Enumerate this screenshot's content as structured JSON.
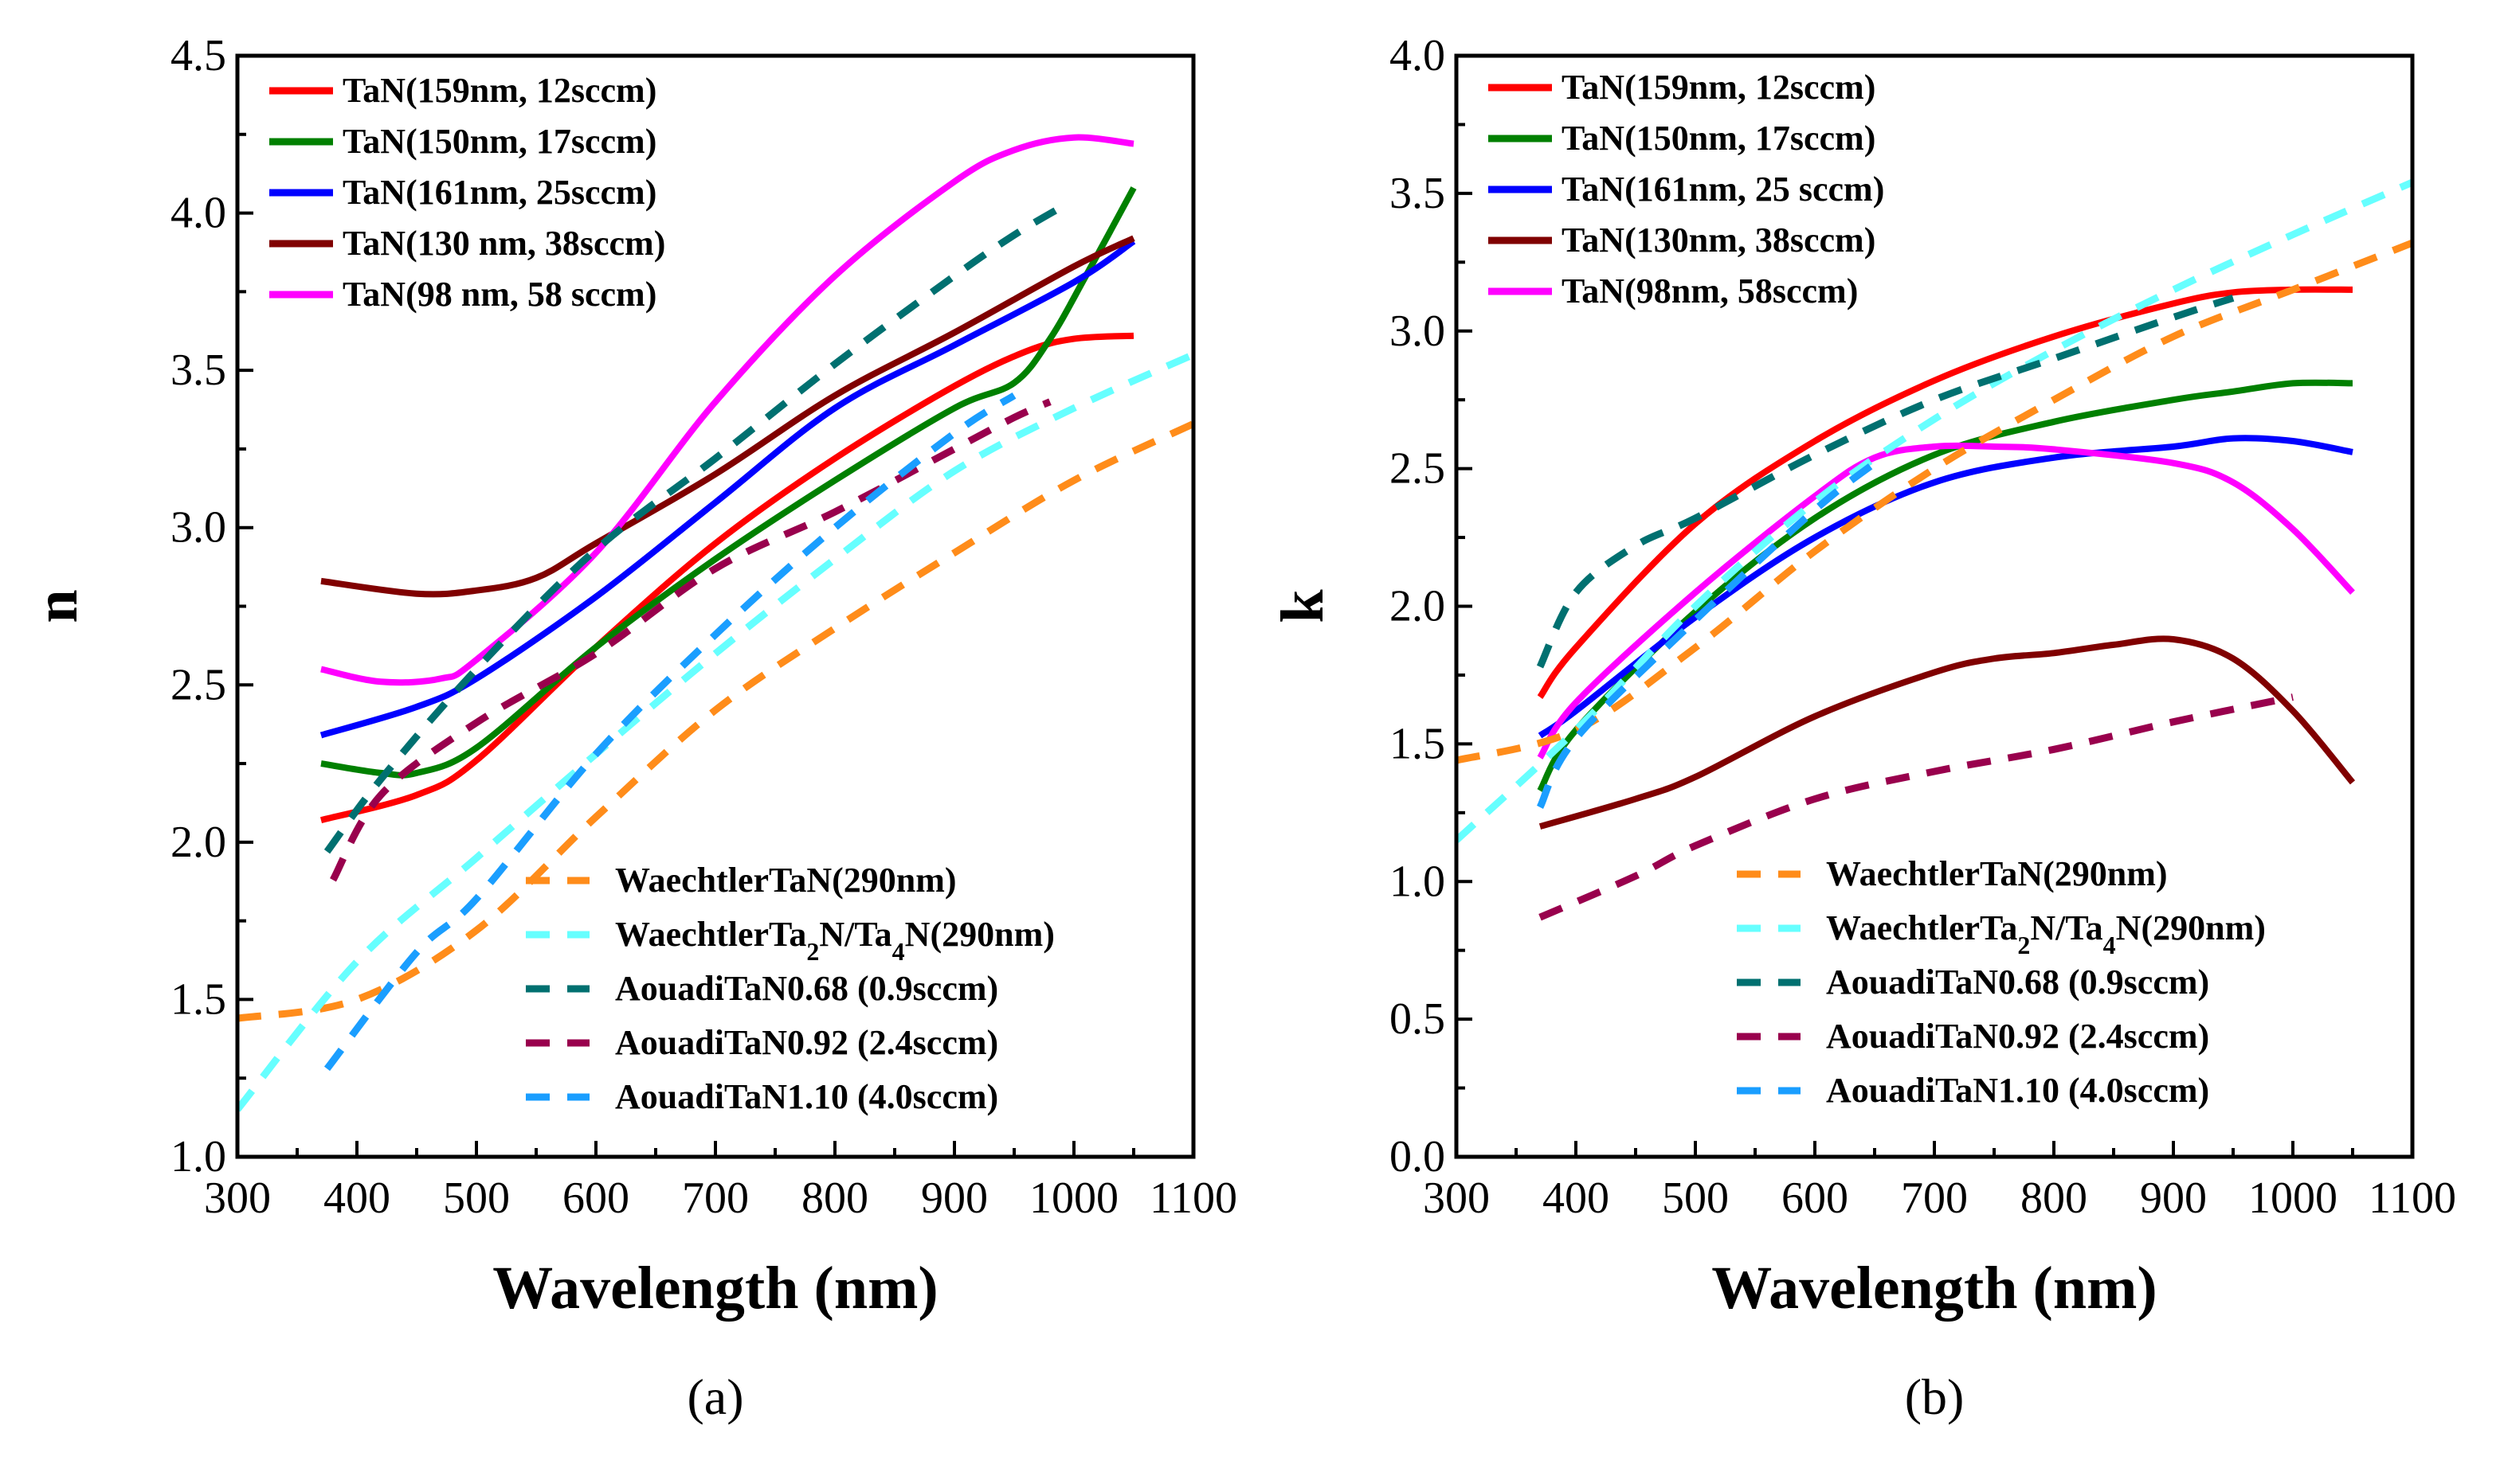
{
  "chart_data": [
    {
      "type": "line",
      "panel": "a",
      "caption": "(a)",
      "xlabel": "Wavelength (nm)",
      "ylabel": "n",
      "xlim": [
        300,
        1100
      ],
      "ylim": [
        1.0,
        4.5
      ],
      "xticks": [
        300,
        400,
        500,
        600,
        700,
        800,
        900,
        1000,
        1100
      ],
      "yticks": [
        1.0,
        1.5,
        2.0,
        2.5,
        3.0,
        3.5,
        4.0,
        4.5
      ],
      "xtick_labels": [
        "300",
        "400",
        "500",
        "600",
        "700",
        "800",
        "900",
        "1000",
        "1100"
      ],
      "ytick_labels": [
        "1.0",
        "1.5",
        "2.0",
        "2.5",
        "3.0",
        "3.5",
        "4.0",
        "4.5"
      ],
      "legend_solid_position": "top-left",
      "legend_dashed_position": "bottom-right",
      "series": [
        {
          "name": "TaN(159nm, 12sccm)",
          "color": "#ff0000",
          "dashed": false,
          "x": [
            370,
            450,
            500,
            600,
            700,
            800,
            900,
            960,
            1000,
            1050
          ],
          "y": [
            2.07,
            2.15,
            2.26,
            2.62,
            2.95,
            3.22,
            3.45,
            3.56,
            3.6,
            3.61
          ]
        },
        {
          "name": "TaN(150nm, 17sccm)",
          "color": "#008000",
          "dashed": false,
          "x": [
            370,
            420,
            450,
            500,
            600,
            700,
            800,
            900,
            950,
            980,
            1010,
            1050
          ],
          "y": [
            2.25,
            2.22,
            2.22,
            2.3,
            2.62,
            2.9,
            3.15,
            3.38,
            3.46,
            3.6,
            3.8,
            4.08
          ]
        },
        {
          "name": "TaN(161nm, 25sccm)",
          "color": "#0000ff",
          "dashed": false,
          "x": [
            370,
            450,
            500,
            600,
            700,
            800,
            900,
            1000,
            1050
          ],
          "y": [
            2.34,
            2.43,
            2.52,
            2.78,
            3.08,
            3.38,
            3.58,
            3.78,
            3.91
          ]
        },
        {
          "name": "TaN(130 nm, 38sccm)",
          "color": "#800000",
          "dashed": false,
          "x": [
            370,
            450,
            500,
            550,
            600,
            700,
            800,
            900,
            1000,
            1050
          ],
          "y": [
            2.83,
            2.79,
            2.8,
            2.84,
            2.95,
            3.17,
            3.42,
            3.62,
            3.83,
            3.92
          ]
        },
        {
          "name": "TaN(98 nm, 58 sccm)",
          "color": "#ff00ff",
          "dashed": false,
          "x": [
            370,
            420,
            470,
            500,
            600,
            700,
            800,
            900,
            950,
            1000,
            1050
          ],
          "y": [
            2.55,
            2.51,
            2.52,
            2.58,
            2.92,
            3.4,
            3.8,
            4.1,
            4.2,
            4.24,
            4.22
          ]
        },
        {
          "name": "WaechtlerTaN(290nm)",
          "color": "#ff8c1a",
          "dashed": true,
          "x": [
            300,
            400,
            500,
            600,
            700,
            800,
            900,
            1000,
            1100
          ],
          "y": [
            1.44,
            1.5,
            1.72,
            2.08,
            2.42,
            2.68,
            2.92,
            3.15,
            3.33
          ]
        },
        {
          "name": "WaechtlerTa2N/Ta4N(290nm)",
          "color": "#66ffff",
          "dashed": true,
          "x": [
            300,
            400,
            500,
            600,
            700,
            800,
            900,
            1000,
            1100
          ],
          "y": [
            1.15,
            1.62,
            1.95,
            2.28,
            2.6,
            2.9,
            3.18,
            3.38,
            3.55
          ]
        },
        {
          "name": "AouadiTaN0.68 (0.9sccm)",
          "color": "#007070",
          "dashed": true,
          "x": [
            375,
            420,
            500,
            600,
            700,
            800,
            900,
            950,
            990
          ],
          "y": [
            1.97,
            2.2,
            2.55,
            2.93,
            3.22,
            3.52,
            3.8,
            3.93,
            4.02
          ]
        },
        {
          "name": "AouadiTaN0.92 (2.4sccm)",
          "color": "#99004d",
          "dashed": true,
          "x": [
            380,
            420,
            500,
            600,
            700,
            800,
            900,
            950,
            980
          ],
          "y": [
            1.88,
            2.15,
            2.38,
            2.6,
            2.87,
            3.05,
            3.25,
            3.35,
            3.4
          ]
        },
        {
          "name": "AouadiTaN1.10 (4.0sccm)",
          "color": "#1a9eff",
          "dashed": true,
          "x": [
            375,
            450,
            500,
            600,
            700,
            800,
            900,
            950
          ],
          "y": [
            1.28,
            1.65,
            1.82,
            2.28,
            2.66,
            3.0,
            3.3,
            3.42
          ]
        }
      ],
      "legend_solid": [
        {
          "label": "TaN(159nm, 12sccm)"
        },
        {
          "label": "TaN(150nm, 17sccm)"
        },
        {
          "label": "TaN(161nm, 25sccm)"
        },
        {
          "label": "TaN(130 nm, 38sccm)"
        },
        {
          "label": "TaN(98 nm, 58 sccm)"
        }
      ],
      "legend_dashed": [
        {
          "label": "WaechtlerTaN(290nm)"
        },
        {
          "label_pre": "WaechtlerTa",
          "sub1": "2",
          "label_mid": "N/Ta",
          "sub2": "4",
          "label_post": "N(290nm)"
        },
        {
          "label": "AouadiTaN0.68 (0.9sccm)"
        },
        {
          "label": "AouadiTaN0.92 (2.4sccm)"
        },
        {
          "label": "AouadiTaN1.10 (4.0sccm)"
        }
      ]
    },
    {
      "type": "line",
      "panel": "b",
      "caption": "(b)",
      "xlabel": "Wavelength (nm)",
      "ylabel": "k",
      "xlim": [
        300,
        1100
      ],
      "ylim": [
        0.0,
        4.0
      ],
      "xticks": [
        300,
        400,
        500,
        600,
        700,
        800,
        900,
        1000,
        1100
      ],
      "yticks": [
        0.0,
        0.5,
        1.0,
        1.5,
        2.0,
        2.5,
        3.0,
        3.5,
        4.0
      ],
      "xtick_labels": [
        "300",
        "400",
        "500",
        "600",
        "700",
        "800",
        "900",
        "1000",
        "1100"
      ],
      "ytick_labels": [
        "0.0",
        "0.5",
        "1.0",
        "1.5",
        "2.0",
        "2.5",
        "3.0",
        "3.5",
        "4.0"
      ],
      "legend_solid_position": "top-left",
      "legend_dashed_position": "bottom-right",
      "series": [
        {
          "name": "TaN(159nm, 12sccm)",
          "color": "#ff0000",
          "dashed": false,
          "x": [
            370,
            400,
            500,
            600,
            700,
            800,
            900,
            950,
            1000,
            1050
          ],
          "y": [
            1.67,
            1.85,
            2.3,
            2.6,
            2.82,
            2.98,
            3.1,
            3.14,
            3.15,
            3.15
          ]
        },
        {
          "name": "TaN(150nm, 17sccm)",
          "color": "#008000",
          "dashed": false,
          "x": [
            370,
            400,
            500,
            600,
            700,
            800,
            900,
            950,
            1000,
            1050
          ],
          "y": [
            1.33,
            1.55,
            1.98,
            2.32,
            2.55,
            2.67,
            2.75,
            2.78,
            2.81,
            2.81
          ]
        },
        {
          "name": "TaN(161nm, 25sccm)",
          "color": "#0000ff",
          "dashed": false,
          "x": [
            370,
            400,
            500,
            600,
            700,
            800,
            900,
            950,
            1000,
            1050
          ],
          "y": [
            1.53,
            1.62,
            1.96,
            2.25,
            2.45,
            2.54,
            2.58,
            2.61,
            2.6,
            2.56
          ]
        },
        {
          "name": "TaN(130nm, 38sccm)",
          "color": "#800000",
          "dashed": false,
          "x": [
            370,
            450,
            500,
            600,
            700,
            750,
            800,
            850,
            900,
            950,
            1000,
            1050
          ],
          "y": [
            1.2,
            1.3,
            1.38,
            1.6,
            1.76,
            1.81,
            1.83,
            1.86,
            1.88,
            1.81,
            1.62,
            1.36
          ]
        },
        {
          "name": "TaN(98nm, 58sccm)",
          "color": "#ff00ff",
          "dashed": false,
          "x": [
            370,
            400,
            500,
            600,
            650,
            700,
            750,
            800,
            900,
            950,
            1000,
            1050
          ],
          "y": [
            1.45,
            1.65,
            2.05,
            2.4,
            2.54,
            2.58,
            2.58,
            2.57,
            2.52,
            2.45,
            2.28,
            2.05
          ]
        },
        {
          "name": "WaechtlerTaN(290nm)",
          "color": "#ff8c1a",
          "dashed": true,
          "x": [
            300,
            400,
            500,
            600,
            700,
            800,
            900,
            1000,
            1100
          ],
          "y": [
            1.44,
            1.55,
            1.85,
            2.2,
            2.5,
            2.75,
            2.98,
            3.15,
            3.32
          ]
        },
        {
          "name": "WaechtlerTa2N/Ta4N(290nm)",
          "color": "#66ffff",
          "dashed": true,
          "x": [
            300,
            400,
            500,
            600,
            700,
            800,
            900,
            1000,
            1100
          ],
          "y": [
            1.15,
            1.55,
            2.0,
            2.38,
            2.68,
            2.93,
            3.15,
            3.35,
            3.54
          ]
        },
        {
          "name": "AouadiTaN0.68 (0.9sccm)",
          "color": "#007070",
          "dashed": true,
          "x": [
            370,
            400,
            450,
            500,
            600,
            700,
            800,
            900,
            950
          ],
          "y": [
            1.78,
            2.05,
            2.22,
            2.32,
            2.55,
            2.75,
            2.9,
            3.05,
            3.12
          ]
        },
        {
          "name": "AouadiTaN0.92 (2.4sccm)",
          "color": "#99004d",
          "dashed": true,
          "x": [
            370,
            450,
            500,
            600,
            700,
            800,
            900,
            1000
          ],
          "y": [
            0.87,
            1.02,
            1.13,
            1.3,
            1.4,
            1.48,
            1.58,
            1.67
          ]
        },
        {
          "name": "AouadiTaN1.10 (4.0sccm)",
          "color": "#1a9eff",
          "dashed": true,
          "x": [
            370,
            400,
            500,
            600,
            650
          ],
          "y": [
            1.27,
            1.52,
            1.95,
            2.35,
            2.52
          ]
        }
      ],
      "legend_solid": [
        {
          "label": "TaN(159nm, 12sccm)"
        },
        {
          "label": "TaN(150nm, 17sccm)"
        },
        {
          "label": "TaN(161nm, 25 sccm)"
        },
        {
          "label": "TaN(130nm, 38sccm)"
        },
        {
          "label": "TaN(98nm, 58sccm)"
        }
      ],
      "legend_dashed": [
        {
          "label": "WaechtlerTaN(290nm)"
        },
        {
          "label_pre": "WaechtlerTa",
          "sub1": "2",
          "label_mid": "N/Ta",
          "sub2": "4",
          "label_post": "N(290nm)"
        },
        {
          "label": "AouadiTaN0.68 (0.9sccm)"
        },
        {
          "label": "AouadiTaN0.92 (2.4sccm)"
        },
        {
          "label": "AouadiTaN1.10 (4.0sccm)"
        }
      ]
    }
  ]
}
